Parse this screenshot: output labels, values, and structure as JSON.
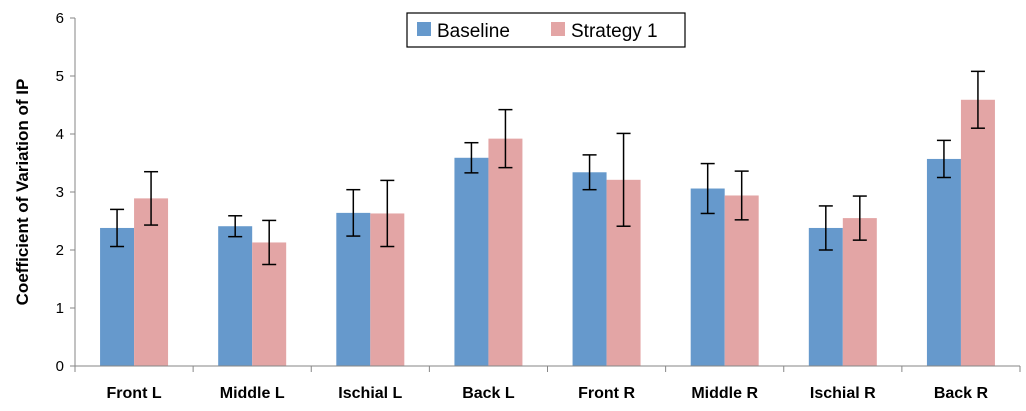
{
  "chart_data": {
    "type": "bar",
    "title": "",
    "xlabel": "",
    "ylabel": "Coefficient of Variation of IP",
    "ylim": [
      0,
      6
    ],
    "yticks": [
      0,
      1,
      2,
      3,
      4,
      5,
      6
    ],
    "grid": false,
    "legend_position": "top-center",
    "categories": [
      "Front L",
      "Middle L",
      "Ischial L",
      "Back L",
      "Front R",
      "Middle R",
      "Ischial R",
      "Back R"
    ],
    "series": [
      {
        "name": "Baseline",
        "color": "#6699cc",
        "values": [
          2.38,
          2.41,
          2.64,
          3.59,
          3.34,
          3.06,
          2.38,
          3.57
        ],
        "error": [
          0.32,
          0.18,
          0.4,
          0.26,
          0.3,
          0.43,
          0.38,
          0.32
        ]
      },
      {
        "name": "Strategy 1",
        "color": "#e3a5a5",
        "values": [
          2.89,
          2.13,
          2.63,
          3.92,
          3.21,
          2.94,
          2.55,
          4.59
        ],
        "error": [
          0.46,
          0.38,
          0.57,
          0.5,
          0.8,
          0.42,
          0.38,
          0.49
        ]
      }
    ]
  }
}
